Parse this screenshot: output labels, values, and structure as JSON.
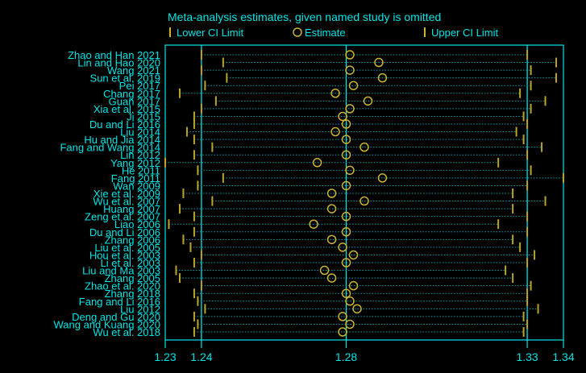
{
  "chart_data": {
    "type": "scatter",
    "title": "Meta-analysis estimates, given named study is omitted",
    "legend": {
      "placement": "top",
      "items": [
        {
          "label": "Lower CI Limit",
          "marker": "tick"
        },
        {
          "label": "Estimate",
          "marker": "circle"
        },
        {
          "label": "Upper CI Limit",
          "marker": "tick"
        }
      ]
    },
    "x_ticks": [
      "1.23",
      "1.24",
      "1.28",
      "1.33",
      "1.34"
    ],
    "x_tick_values": [
      1.23,
      1.24,
      1.28,
      1.33,
      1.34
    ],
    "xlim": [
      1.23,
      1.34
    ],
    "reference_lines": [
      1.24,
      1.28,
      1.33
    ],
    "studies": [
      {
        "name": "Zhao and Han 2021",
        "lower": 1.24,
        "estimate": 1.281,
        "upper": 1.33
      },
      {
        "name": "Lin and Hao 2020",
        "lower": 1.246,
        "estimate": 1.289,
        "upper": 1.338
      },
      {
        "name": "Wang 2021",
        "lower": 1.24,
        "estimate": 1.281,
        "upper": 1.331
      },
      {
        "name": "Sun et al. 2019",
        "lower": 1.247,
        "estimate": 1.29,
        "upper": 1.338
      },
      {
        "name": "Pei 2017",
        "lower": 1.241,
        "estimate": 1.282,
        "upper": 1.331
      },
      {
        "name": "Chang 2017",
        "lower": 1.234,
        "estimate": 1.277,
        "upper": 1.328
      },
      {
        "name": "Guan 2017",
        "lower": 1.244,
        "estimate": 1.286,
        "upper": 1.335
      },
      {
        "name": "Xia et al. 2015",
        "lower": 1.24,
        "estimate": 1.281,
        "upper": 1.331
      },
      {
        "name": "Ji 2015",
        "lower": 1.238,
        "estimate": 1.279,
        "upper": 1.329
      },
      {
        "name": "Du and Li 2016",
        "lower": 1.238,
        "estimate": 1.28,
        "upper": 1.33
      },
      {
        "name": "Liu 2014",
        "lower": 1.236,
        "estimate": 1.277,
        "upper": 1.327
      },
      {
        "name": "Hu and Jia 2014",
        "lower": 1.238,
        "estimate": 1.28,
        "upper": 1.329
      },
      {
        "name": "Fang and Wang 2014",
        "lower": 1.243,
        "estimate": 1.285,
        "upper": 1.334
      },
      {
        "name": "Lin 2012",
        "lower": 1.238,
        "estimate": 1.28,
        "upper": 1.33
      },
      {
        "name": "Yang 2012",
        "lower": 1.23,
        "estimate": 1.272,
        "upper": 1.322
      },
      {
        "name": "He 2011",
        "lower": 1.239,
        "estimate": 1.281,
        "upper": 1.331
      },
      {
        "name": "Fang 2011",
        "lower": 1.246,
        "estimate": 1.29,
        "upper": 1.34
      },
      {
        "name": "Wan 2009",
        "lower": 1.239,
        "estimate": 1.28,
        "upper": 1.33
      },
      {
        "name": "Xie et al. 2009",
        "lower": 1.235,
        "estimate": 1.276,
        "upper": 1.326
      },
      {
        "name": "Wu et al. 2007",
        "lower": 1.243,
        "estimate": 1.285,
        "upper": 1.335
      },
      {
        "name": "Huang 2007",
        "lower": 1.234,
        "estimate": 1.276,
        "upper": 1.326
      },
      {
        "name": "Zeng et al. 2007",
        "lower": 1.238,
        "estimate": 1.28,
        "upper": 1.33
      },
      {
        "name": "Liao 2006",
        "lower": 1.231,
        "estimate": 1.271,
        "upper": 1.322
      },
      {
        "name": "Du and Li 2006",
        "lower": 1.238,
        "estimate": 1.28,
        "upper": 1.33
      },
      {
        "name": "Zhang 2006",
        "lower": 1.235,
        "estimate": 1.276,
        "upper": 1.326
      },
      {
        "name": "Liu et al. 2005",
        "lower": 1.237,
        "estimate": 1.279,
        "upper": 1.328
      },
      {
        "name": "Hou et al. 2003",
        "lower": 1.24,
        "estimate": 1.282,
        "upper": 1.332
      },
      {
        "name": "Li et al. 2003",
        "lower": 1.238,
        "estimate": 1.28,
        "upper": 1.33
      },
      {
        "name": "Liu and Ma 2003",
        "lower": 1.233,
        "estimate": 1.274,
        "upper": 1.324
      },
      {
        "name": "Zhang 2005",
        "lower": 1.234,
        "estimate": 1.276,
        "upper": 1.326
      },
      {
        "name": "Zhao et al. 2020",
        "lower": 1.24,
        "estimate": 1.282,
        "upper": 1.331
      },
      {
        "name": "Zhang 2018",
        "lower": 1.238,
        "estimate": 1.28,
        "upper": 1.33
      },
      {
        "name": "Fang and Li 2016",
        "lower": 1.239,
        "estimate": 1.281,
        "upper": 1.33
      },
      {
        "name": "Liu 2012",
        "lower": 1.241,
        "estimate": 1.283,
        "upper": 1.333
      },
      {
        "name": "Deng and Gu 2020",
        "lower": 1.238,
        "estimate": 1.279,
        "upper": 1.329
      },
      {
        "name": "Wang and Kuang 2020",
        "lower": 1.239,
        "estimate": 1.281,
        "upper": 1.33
      },
      {
        "name": "Wu et al. 2018",
        "lower": 1.238,
        "estimate": 1.279,
        "upper": 1.329
      }
    ],
    "colors": {
      "background": "#000000",
      "axis": "#00e5e5",
      "text": "#00e5e5",
      "ci_line": "#0d9fb0",
      "ci_tick": "#b8a52a",
      "estimate": "#c9b430"
    }
  }
}
